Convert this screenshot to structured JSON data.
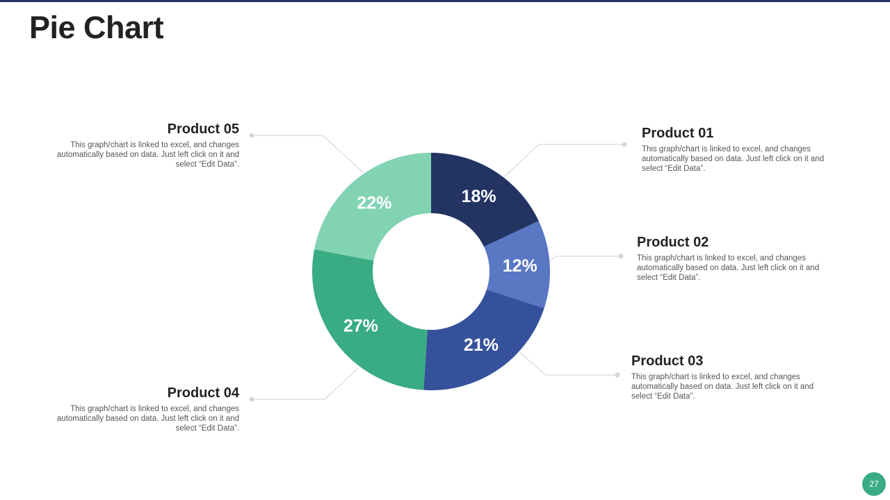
{
  "title": "Pie Chart",
  "page_number": "27",
  "colors": {
    "product_01": "#233463",
    "product_02": "#5a77c4",
    "product_03": "#36519b",
    "product_04": "#3aac84",
    "product_05": "#82d3b4",
    "top_rule": "#233463",
    "page_badge": "#3aac84"
  },
  "callouts": {
    "p01": {
      "name": "Product 01",
      "desc": "This graph/chart is linked to excel, and changes automatically based on data. Just left click on it and select “Edit Data”."
    },
    "p02": {
      "name": "Product 02",
      "desc": "This graph/chart is linked to excel, and changes automatically based on data. Just left click on it and select “Edit Data”."
    },
    "p03": {
      "name": "Product 03",
      "desc": "This graph/chart is linked to excel, and changes automatically based on data. Just left click on it and select “Edit Data”."
    },
    "p04": {
      "name": "Product 04",
      "desc": "This graph/chart is linked to excel, and changes automatically based on data. Just left click on it and select “Edit Data”."
    },
    "p05": {
      "name": "Product 05",
      "desc": "This graph/chart is linked to excel, and changes automatically based on data. Just left click on it and select “Edit Data”."
    }
  },
  "chart_data": {
    "type": "pie",
    "style": "donut",
    "title": "",
    "categories": [
      "Product 01",
      "Product 02",
      "Product 03",
      "Product 04",
      "Product 05"
    ],
    "values": [
      18,
      12,
      21,
      27,
      22
    ],
    "labels": [
      "18%",
      "12%",
      "21%",
      "27%",
      "22%"
    ],
    "colors": [
      "#233463",
      "#5a77c4",
      "#36519b",
      "#3aac84",
      "#82d3b4"
    ],
    "legend": "none"
  }
}
